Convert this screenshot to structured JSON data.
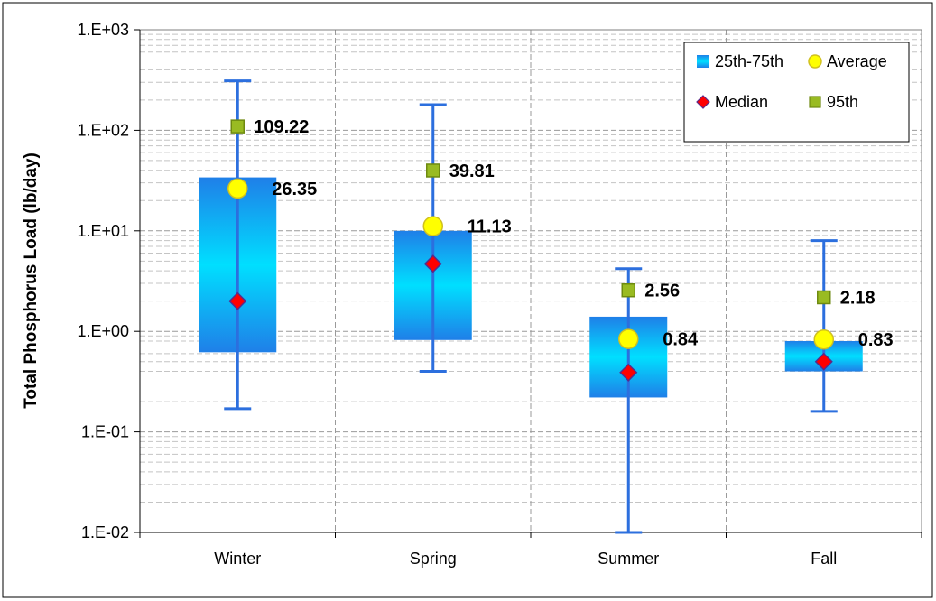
{
  "chart_data": {
    "type": "box",
    "ylabel": "Total Phosphorus Load (lb/day)",
    "yscale": "log",
    "ylim": [
      0.01,
      1000
    ],
    "ytick_labels": [
      "1.E-02",
      "1.E-01",
      "1.E+00",
      "1.E+01",
      "1.E+02",
      "1.E+03"
    ],
    "ytick_values": [
      0.01,
      0.1,
      1,
      10,
      100,
      1000
    ],
    "categories": [
      "Winter",
      "Spring",
      "Summer",
      "Fall"
    ],
    "series": [
      {
        "name": "25th-75th",
        "q1": [
          0.62,
          0.82,
          0.22,
          0.4
        ],
        "q3": [
          34,
          10,
          1.4,
          0.8
        ]
      },
      {
        "name": "Average",
        "values": [
          26.35,
          11.13,
          0.84,
          0.83
        ]
      },
      {
        "name": "Median",
        "values": [
          2.0,
          4.7,
          0.39,
          0.5
        ]
      },
      {
        "name": "95th",
        "values": [
          109.22,
          39.81,
          2.56,
          2.18
        ]
      }
    ],
    "whiskers": {
      "min": [
        0.17,
        0.4,
        0.01,
        0.16
      ],
      "max": [
        310,
        180,
        4.2,
        8.0
      ]
    },
    "data_labels": {
      "avg": [
        "26.35",
        "11.13",
        "0.84",
        "0.83"
      ],
      "p95": [
        "109.22",
        "39.81",
        "2.56",
        "2.18"
      ]
    },
    "grid": true,
    "legend": {
      "position": "top-right",
      "entries": [
        "25th-75th",
        "Average",
        "Median",
        "95th"
      ]
    },
    "colors": {
      "box_edge": "#1f7fe8",
      "box_center": "#00dfff",
      "average": "#ffff00",
      "median": "#ff0000",
      "p95": "#99bb22",
      "whisker": "#2c6fde"
    }
  }
}
